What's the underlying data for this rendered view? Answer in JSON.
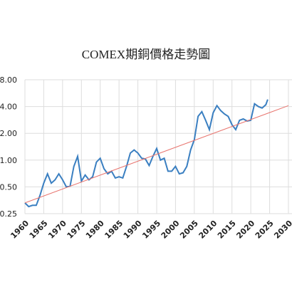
{
  "chart_data": {
    "type": "line",
    "title": "COMEX期銅價格走勢圖",
    "log_scale": true,
    "grid": true,
    "xlim": [
      1960,
      2030
    ],
    "xticks": [
      1960,
      1965,
      1970,
      1975,
      1980,
      1985,
      1990,
      1995,
      2000,
      2005,
      2010,
      2015,
      2020,
      2025,
      2030
    ],
    "ylim": [
      0.25,
      8
    ],
    "yticks": [
      {
        "value": 0.25,
        "label": "0.25"
      },
      {
        "value": 0.5,
        "label": "0.50"
      },
      {
        "value": 1,
        "label": "1.00"
      },
      {
        "value": 2,
        "label": "2.00"
      },
      {
        "value": 4,
        "label": "4.00"
      },
      {
        "value": 8,
        "label": "8.00"
      }
    ],
    "series": [
      {
        "color": "#3a7fc1",
        "x": [
          1960,
          1961,
          1962,
          1963,
          1964,
          1965,
          1966,
          1967,
          1968,
          1969,
          1970,
          1971,
          1972,
          1973,
          1974,
          1975,
          1976,
          1977,
          1978,
          1979,
          1980,
          1981,
          1982,
          1983,
          1984,
          1985,
          1986,
          1987,
          1988,
          1989,
          1990,
          1991,
          1992,
          1993,
          1994,
          1995,
          1996,
          1997,
          1998,
          1999,
          2000,
          2001,
          2002,
          2003,
          2004,
          2005,
          2006,
          2007,
          2008,
          2009,
          2010,
          2011,
          2012,
          2013,
          2014,
          2015,
          2016,
          2017,
          2018,
          2019,
          2020,
          2021,
          2022,
          2023,
          2024,
          2024.5
        ],
        "values": [
          0.33,
          0.3,
          0.31,
          0.31,
          0.4,
          0.55,
          0.7,
          0.55,
          0.6,
          0.7,
          0.6,
          0.5,
          0.51,
          0.85,
          1.1,
          0.58,
          0.68,
          0.6,
          0.65,
          0.95,
          1.05,
          0.8,
          0.7,
          0.75,
          0.63,
          0.65,
          0.63,
          0.85,
          1.2,
          1.3,
          1.2,
          1.05,
          1.03,
          0.87,
          1.1,
          1.35,
          1.0,
          1.05,
          0.75,
          0.75,
          0.85,
          0.7,
          0.72,
          0.85,
          1.3,
          1.7,
          3.1,
          3.5,
          2.8,
          2.2,
          3.4,
          4.1,
          3.6,
          3.3,
          3.1,
          2.5,
          2.2,
          2.8,
          2.9,
          2.75,
          2.8,
          4.3,
          4.0,
          3.85,
          4.2,
          4.8
        ]
      },
      {
        "color": "#e8746e",
        "x": [
          1960,
          2030
        ],
        "values": [
          0.33,
          4.1
        ]
      }
    ]
  }
}
